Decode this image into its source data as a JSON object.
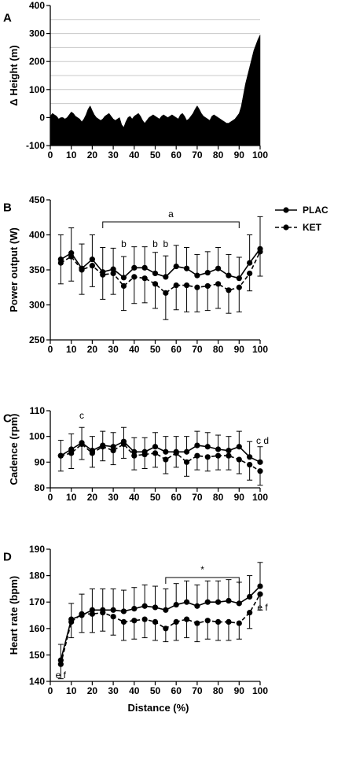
{
  "chart_data": [
    {
      "panel": "A",
      "type": "area",
      "ylabel": "Δ Height (m)",
      "xlim": [
        0,
        100
      ],
      "ylim": [
        -100,
        400
      ],
      "xticks": [
        0,
        10,
        20,
        30,
        40,
        50,
        60,
        70,
        80,
        90,
        100
      ],
      "yticks": [
        -100,
        0,
        100,
        200,
        300,
        400
      ],
      "grid": "horizontal",
      "x": [
        0,
        1,
        2,
        3,
        4,
        5,
        6,
        7,
        8,
        9,
        10,
        11,
        12,
        13,
        14,
        15,
        16,
        17,
        18,
        19,
        20,
        21,
        22,
        23,
        24,
        25,
        26,
        27,
        28,
        29,
        30,
        31,
        32,
        33,
        34,
        35,
        36,
        37,
        38,
        39,
        40,
        41,
        42,
        43,
        44,
        45,
        46,
        47,
        48,
        49,
        50,
        51,
        52,
        53,
        54,
        55,
        56,
        57,
        58,
        59,
        60,
        61,
        62,
        63,
        64,
        65,
        66,
        67,
        68,
        69,
        70,
        71,
        72,
        73,
        74,
        75,
        76,
        77,
        78,
        79,
        80,
        81,
        82,
        83,
        84,
        85,
        86,
        87,
        88,
        89,
        90,
        91,
        92,
        93,
        94,
        95,
        96,
        97,
        98,
        99,
        100
      ],
      "y": [
        5,
        15,
        10,
        5,
        -5,
        0,
        0,
        -5,
        0,
        10,
        20,
        15,
        5,
        0,
        -5,
        -15,
        -5,
        10,
        30,
        42,
        25,
        10,
        0,
        -5,
        -10,
        -5,
        5,
        10,
        15,
        5,
        -5,
        -10,
        -5,
        0,
        -25,
        -35,
        -15,
        0,
        5,
        -5,
        5,
        10,
        15,
        5,
        -10,
        -20,
        -10,
        0,
        5,
        10,
        5,
        0,
        -5,
        5,
        10,
        5,
        0,
        5,
        10,
        5,
        0,
        -5,
        10,
        15,
        5,
        -10,
        -5,
        5,
        15,
        30,
        42,
        30,
        15,
        5,
        0,
        -5,
        -10,
        5,
        10,
        5,
        0,
        -5,
        -10,
        -15,
        -20,
        -20,
        -15,
        -10,
        -5,
        5,
        15,
        40,
        80,
        120,
        150,
        180,
        210,
        240,
        260,
        280,
        295
      ]
    },
    {
      "panel": "B",
      "type": "line",
      "ylabel": "Power output  (W)",
      "xlim": [
        0,
        100
      ],
      "ylim": [
        250,
        450
      ],
      "xticks": [
        0,
        10,
        20,
        30,
        40,
        50,
        60,
        70,
        80,
        90,
        100
      ],
      "yticks": [
        250,
        300,
        350,
        400,
        450
      ],
      "legend": "right",
      "x": [
        5,
        10,
        15,
        20,
        25,
        30,
        35,
        40,
        45,
        50,
        55,
        60,
        65,
        70,
        75,
        80,
        85,
        90,
        95,
        100
      ],
      "series": [
        {
          "name": "PLAC",
          "style": "solid",
          "values": [
            365,
            374,
            352,
            365,
            347,
            351,
            339,
            353,
            353,
            345,
            340,
            355,
            352,
            342,
            346,
            352,
            342,
            338,
            360,
            380
          ],
          "err": [
            35,
            36,
            35,
            35,
            35,
            30,
            30,
            30,
            30,
            30,
            30,
            30,
            30,
            30,
            30,
            30,
            30,
            30,
            40,
            46
          ]
        },
        {
          "name": "KET",
          "style": "dashed",
          "values": [
            360,
            369,
            350,
            356,
            343,
            345,
            327,
            340,
            338,
            330,
            317,
            328,
            328,
            325,
            327,
            330,
            321,
            325,
            345,
            376
          ],
          "err": [
            30,
            35,
            35,
            30,
            35,
            30,
            35,
            38,
            35,
            35,
            38,
            35,
            38,
            35,
            35,
            35,
            33,
            35,
            25,
            35
          ]
        }
      ],
      "annotations": [
        {
          "text": "a",
          "bracket": [
            25,
            90
          ]
        },
        {
          "text": "b",
          "x": 35
        },
        {
          "text": "b",
          "x": 50
        },
        {
          "text": "b",
          "x": 55
        }
      ]
    },
    {
      "panel": "C",
      "type": "line",
      "ylabel": "Cadence (rpm)",
      "xlim": [
        0,
        100
      ],
      "ylim": [
        80,
        110
      ],
      "xticks": [
        0,
        10,
        20,
        30,
        40,
        50,
        60,
        70,
        80,
        90,
        100
      ],
      "yticks": [
        80,
        90,
        100,
        110
      ],
      "x": [
        5,
        10,
        15,
        20,
        25,
        30,
        35,
        40,
        45,
        50,
        55,
        60,
        65,
        70,
        75,
        80,
        85,
        90,
        95,
        100
      ],
      "series": [
        {
          "name": "PLAC",
          "style": "solid",
          "values": [
            92.5,
            95,
            97.5,
            94.5,
            96.5,
            96,
            98,
            94,
            94,
            96,
            94,
            94,
            94,
            96.5,
            96,
            95,
            94.5,
            96,
            92,
            90
          ],
          "err": [
            6,
            6,
            6,
            5.5,
            5.5,
            5.5,
            5.5,
            5.5,
            5.5,
            5.5,
            6,
            6,
            6,
            5.5,
            5.5,
            5.5,
            5.5,
            6,
            6,
            6
          ]
        },
        {
          "name": "KET",
          "style": "dashed",
          "values": [
            92.5,
            93.5,
            97,
            93.5,
            96,
            94.5,
            97,
            92.5,
            93,
            93.5,
            91,
            93.5,
            90,
            92.5,
            92,
            92.5,
            92.5,
            91,
            89,
            86.5
          ],
          "err": [
            6,
            6,
            6,
            5.5,
            5.5,
            5.5,
            5.5,
            5.5,
            5.5,
            5.5,
            5.5,
            5.5,
            5.5,
            5.5,
            5.5,
            5.5,
            5.5,
            5.5,
            6,
            5.5
          ]
        }
      ],
      "annotations": [
        {
          "text": "c",
          "x": 15
        },
        {
          "text": "c d",
          "x": 100
        }
      ]
    },
    {
      "panel": "D",
      "type": "line",
      "ylabel": "Heart rate (bpm)",
      "xlabel": "Distance (%)",
      "xlim": [
        0,
        100
      ],
      "ylim": [
        140,
        190
      ],
      "xticks": [
        0,
        10,
        20,
        30,
        40,
        50,
        60,
        70,
        80,
        90,
        100
      ],
      "yticks": [
        140,
        150,
        160,
        170,
        180,
        190
      ],
      "x": [
        5,
        10,
        15,
        20,
        25,
        30,
        35,
        40,
        45,
        50,
        55,
        60,
        65,
        70,
        75,
        80,
        85,
        90,
        95,
        100
      ],
      "series": [
        {
          "name": "PLAC",
          "style": "solid",
          "values": [
            148,
            163.5,
            165,
            167,
            167,
            167,
            166.5,
            167.5,
            168.5,
            168,
            167,
            169,
            170,
            168.5,
            170,
            170,
            170.5,
            169.5,
            172,
            176
          ],
          "err": [
            6,
            6,
            8,
            8,
            8,
            8,
            8,
            8,
            8,
            8,
            8,
            8,
            8,
            8,
            8,
            8,
            8,
            8,
            8,
            9
          ]
        },
        {
          "name": "KET",
          "style": "dashed",
          "values": [
            146.5,
            162.5,
            165.5,
            165.5,
            166,
            164.5,
            162.5,
            163,
            163.5,
            162.5,
            160,
            162.5,
            163.5,
            162,
            163,
            162.5,
            162.5,
            162,
            166,
            173
          ],
          "err": [
            5.5,
            6,
            7,
            7,
            7,
            7,
            7,
            7,
            7,
            7,
            5,
            7,
            7,
            7,
            7,
            7,
            7,
            6,
            6,
            6
          ]
        }
      ],
      "annotations": [
        {
          "text": "*",
          "bracket": [
            55,
            90
          ]
        },
        {
          "text": "e f",
          "x": 5
        },
        {
          "text": "e f",
          "x": 100
        }
      ]
    }
  ]
}
